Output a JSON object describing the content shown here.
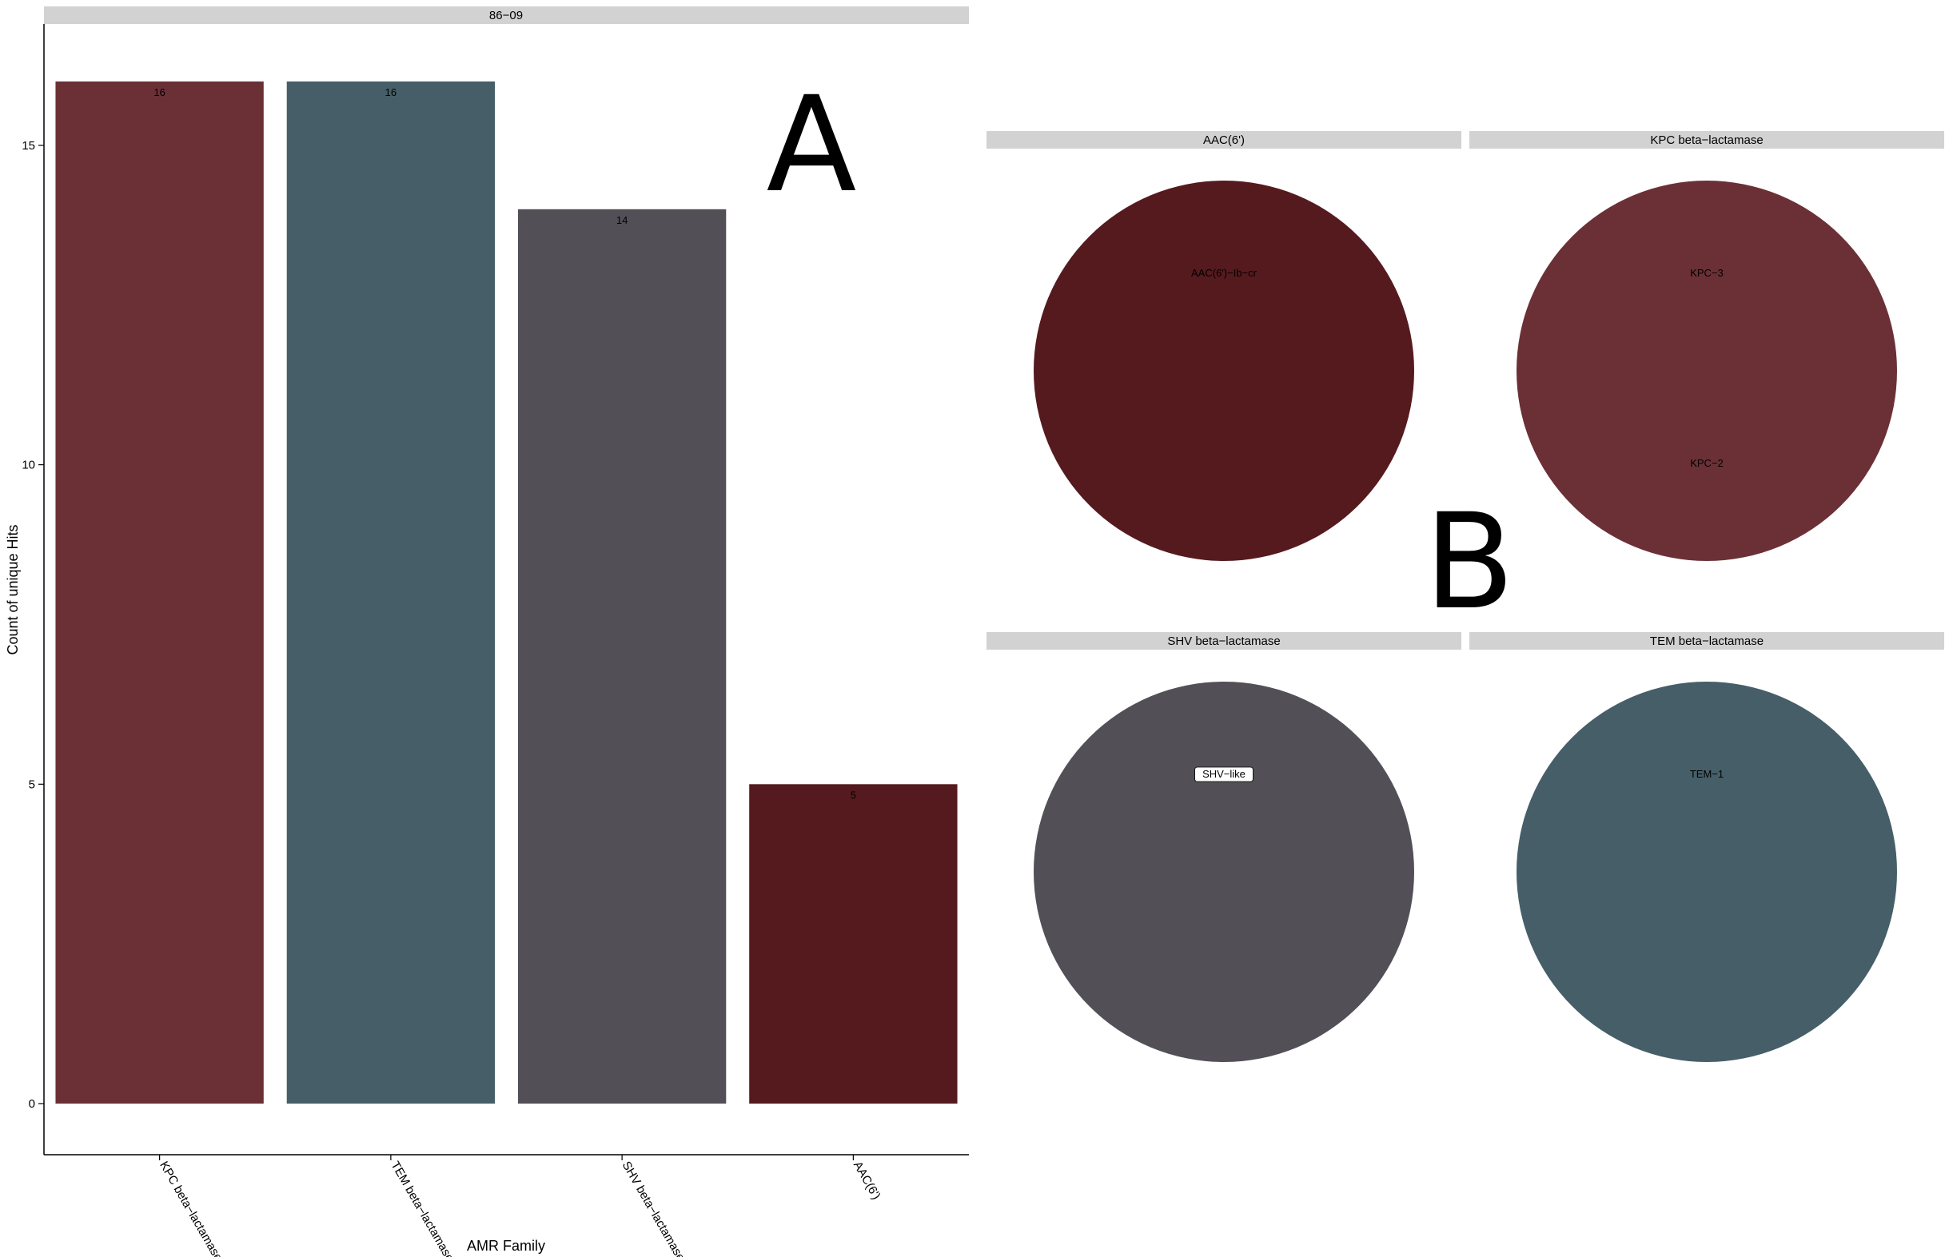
{
  "panel_labels": {
    "a": "A",
    "b": "B"
  },
  "chart_data": [
    {
      "type": "bar",
      "facet": "86−09",
      "categories": [
        "KPC beta−lactamase",
        "TEM beta−lactamase",
        "SHV beta−lactamase",
        "AAC(6')"
      ],
      "values": [
        16,
        16,
        14,
        5
      ],
      "value_labels": [
        "16",
        "16",
        "14",
        "5"
      ],
      "colors": [
        "#6b3036",
        "#465e67",
        "#525056",
        "#551a1e"
      ],
      "xlabel": "AMR Family",
      "ylabel": "Count of unique Hits",
      "yticks": [
        0,
        5,
        10,
        15
      ],
      "ytick_labels": [
        "0",
        "5",
        "10",
        "15"
      ],
      "ylim": [
        -0.8,
        16.9
      ],
      "grid": false
    },
    {
      "type": "pie",
      "facets": [
        {
          "title": "AAC(6')",
          "color": "#551a1e",
          "labels": [
            {
              "text": "AAC(6')−Ib−cr",
              "boxed": false
            }
          ]
        },
        {
          "title": "KPC beta−lactamase",
          "color": "#6b3036",
          "labels": [
            {
              "text": "KPC−3",
              "boxed": false
            },
            {
              "text": "KPC−2",
              "boxed": false
            }
          ]
        },
        {
          "title": "SHV beta−lactamase",
          "color": "#525056",
          "labels": [
            {
              "text": "SHV−like",
              "boxed": true
            }
          ]
        },
        {
          "title": "TEM beta−lactamase",
          "color": "#465e67",
          "labels": [
            {
              "text": "TEM−1",
              "boxed": false
            }
          ]
        }
      ]
    }
  ]
}
